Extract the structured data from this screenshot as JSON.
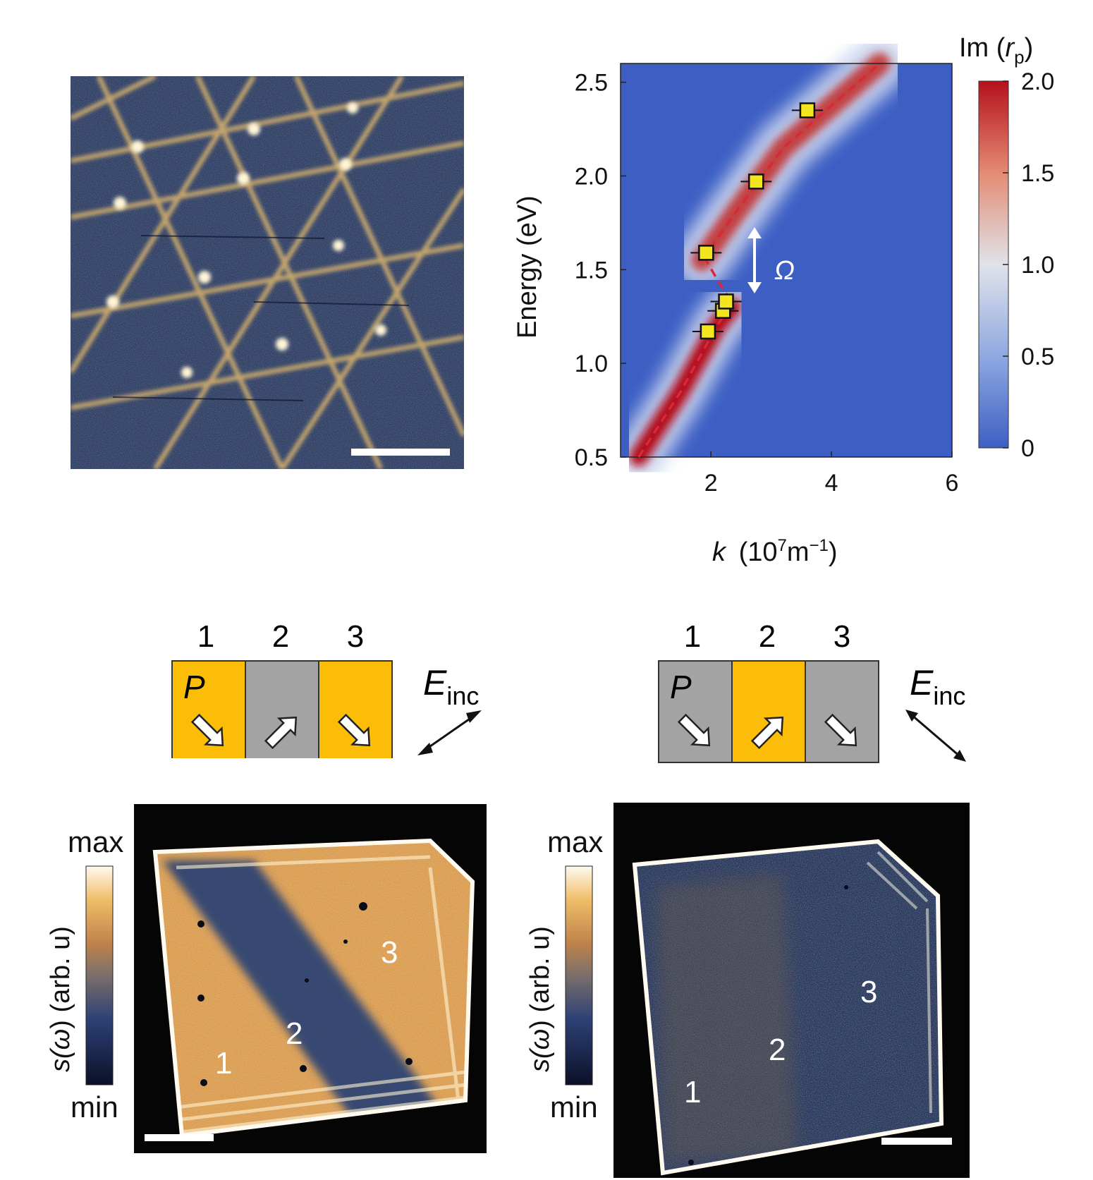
{
  "panel_a": {
    "scale_bar": "scale-bar"
  },
  "panel_b": {
    "ylabel": "Energy (eV)",
    "xlabel_k": "k",
    "xlabel_units_prefix": "(10",
    "xlabel_units_exp": "7",
    "xlabel_units_mid": "m",
    "xlabel_units_exp2": "−1",
    "xlabel_units_suffix": ")",
    "colorbar_title_prefix": "Im (",
    "colorbar_title_var": "r",
    "colorbar_title_sub": "p",
    "colorbar_title_suffix": ")",
    "colorbar_ticks": [
      "2.0",
      "1.5",
      "1.0",
      "0.5",
      "0"
    ],
    "omega_label": "Ω",
    "colors": {
      "low": "#3d5fc4",
      "mid": "#dfe3ea",
      "high": "#b5111b",
      "dashed": "#d42a3a",
      "marker": "#f3e51e"
    }
  },
  "chart_data": {
    "type": "heatmap",
    "xlabel": "k (10^7 m^-1)",
    "ylabel": "Energy (eV)",
    "xlim": [
      0.5,
      6
    ],
    "ylim": [
      0.5,
      2.6
    ],
    "x_ticks": [
      "2",
      "4",
      "6"
    ],
    "y_ticks": [
      "0.5",
      "1.0",
      "1.5",
      "2.0",
      "2.5"
    ],
    "colorbar": {
      "label": "Im (r_p)",
      "range": [
        0,
        2.0
      ],
      "ticks": [
        "0",
        "0.5",
        "1.0",
        "1.5",
        "2.0"
      ]
    },
    "points": [
      {
        "x": 1.95,
        "y": 1.17
      },
      {
        "x": 2.2,
        "y": 1.28
      },
      {
        "x": 2.25,
        "y": 1.33
      },
      {
        "x": 1.92,
        "y": 1.59
      },
      {
        "x": 2.75,
        "y": 1.97
      },
      {
        "x": 3.6,
        "y": 2.35
      }
    ],
    "dashed_curve": [
      {
        "x": 0.8,
        "y": 0.5
      },
      {
        "x": 1.5,
        "y": 0.85
      },
      {
        "x": 2.1,
        "y": 1.2
      },
      {
        "x": 2.35,
        "y": 1.3
      }
    ],
    "dashed_curve_upper": [
      {
        "x": 1.85,
        "y": 1.55
      },
      {
        "x": 2.4,
        "y": 1.8
      },
      {
        "x": 3.2,
        "y": 2.15
      },
      {
        "x": 4.8,
        "y": 2.6
      }
    ],
    "annotation": "Ω"
  },
  "panel_c": {
    "domain_labels": [
      "1",
      "2",
      "3"
    ],
    "dipole_label": "P",
    "field_label": "E",
    "field_sub": "inc",
    "colorbar_max": "max",
    "colorbar_min": "min",
    "colorbar_label_prefix": "s(",
    "colorbar_label_var": "ω",
    "colorbar_label_suffix": ") (arb. u)",
    "map_labels": [
      "1",
      "2",
      "3"
    ]
  },
  "panel_d": {
    "domain_labels": [
      "1",
      "2",
      "3"
    ],
    "dipole_label": "P",
    "field_label": "E",
    "field_sub": "inc",
    "colorbar_max": "max",
    "colorbar_min": "min",
    "colorbar_label_prefix": "s(",
    "colorbar_label_var": "ω",
    "colorbar_label_suffix": ") (arb. u)",
    "map_labels": [
      "1",
      "2",
      "3"
    ]
  }
}
